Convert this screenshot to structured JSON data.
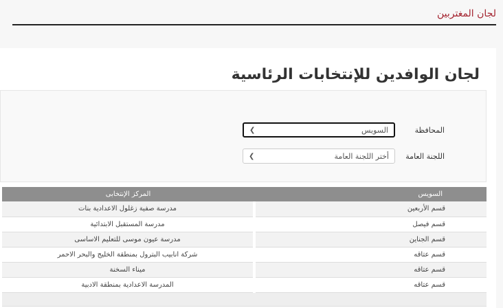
{
  "header": {
    "title": "لجان المغتربين"
  },
  "page": {
    "heading": "لجان الوافدين للإنتخابات الرئاسية"
  },
  "form": {
    "governorate_label": "المحافظة",
    "governorate_value": "السويس",
    "committee_label": "اللجنة العامة",
    "committee_value": "أختر اللجنة العامة"
  },
  "table": {
    "headers": [
      "السويس",
      "المركز الإنتخابى"
    ],
    "rows": [
      [
        "قسم الأربعين",
        "مدرسة صفية زغلول الاعدادية بنات"
      ],
      [
        "قسم فيصل",
        "مدرسة المستقبل الابتدائية"
      ],
      [
        "قسم الجناين",
        "مدرسة عيون موسى للتعليم الاساسى"
      ],
      [
        "قسم عتاقه",
        "شركة انابيب البترول بمنطقة الخليج والبحر الاحمر"
      ],
      [
        "قسم عتاقه",
        "ميناء السخنة"
      ],
      [
        "قسم عتاقه",
        "المدرسة الاعدادية بمنطقة الادبية"
      ]
    ]
  }
}
